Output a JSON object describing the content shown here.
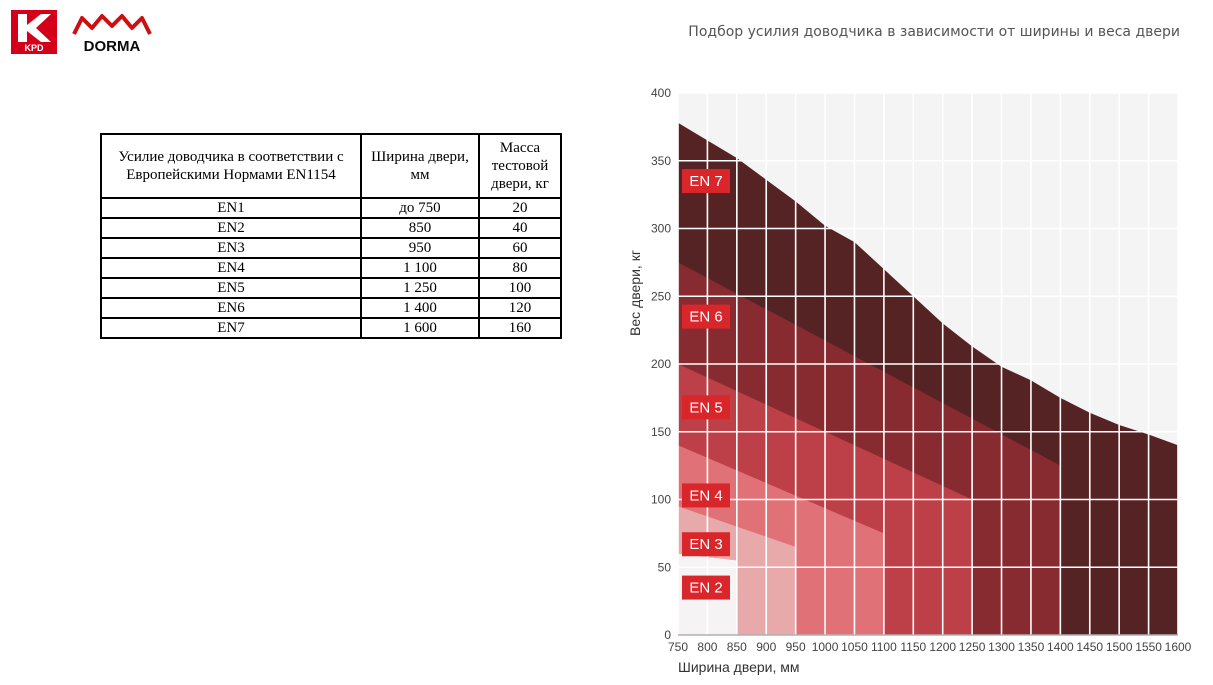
{
  "logos": {
    "kpd_text": "KPD",
    "dorma_text": "DORMA",
    "kpd_color": "#d4001a",
    "dorma_color": "#cc1010"
  },
  "table": {
    "headers": [
      "Усилие доводчика в соответствии с Европейскими Нормами EN1154",
      "Ширина двери, мм",
      "Масса тестовой двери, кг"
    ],
    "rows": [
      [
        "EN1",
        "до 750",
        "20"
      ],
      [
        "EN2",
        "850",
        "40"
      ],
      [
        "EN3",
        "950",
        "60"
      ],
      [
        "EN4",
        "1 100",
        "80"
      ],
      [
        "EN5",
        "1 250",
        "100"
      ],
      [
        "EN6",
        "1 400",
        "120"
      ],
      [
        "EN7",
        "1 600",
        "160"
      ]
    ]
  },
  "chart_data": {
    "type": "area",
    "title": "Подбор усилия доводчика в зависимости от ширины и веса двери",
    "xlabel": "Ширина двери, мм",
    "ylabel": "Вес двери, кг",
    "xlim": [
      750,
      1600
    ],
    "ylim": [
      0,
      400
    ],
    "xticks": [
      750,
      800,
      850,
      900,
      950,
      1000,
      1050,
      1100,
      1150,
      1200,
      1250,
      1300,
      1350,
      1400,
      1450,
      1500,
      1550,
      1600
    ],
    "yticks": [
      0,
      50,
      100,
      150,
      200,
      250,
      300,
      350,
      400
    ],
    "grid": true,
    "series": [
      {
        "name": "EN 7",
        "color": "#562324",
        "label_y": 335,
        "x_max": 1600,
        "boundary": [
          [
            750,
            378
          ],
          [
            850,
            352
          ],
          [
            950,
            320
          ],
          [
            1000,
            302
          ],
          [
            1050,
            290
          ],
          [
            1100,
            270
          ],
          [
            1150,
            250
          ],
          [
            1200,
            230
          ],
          [
            1250,
            213
          ],
          [
            1300,
            198
          ],
          [
            1350,
            188
          ],
          [
            1400,
            175
          ],
          [
            1450,
            164
          ],
          [
            1500,
            155
          ],
          [
            1550,
            148
          ],
          [
            1600,
            140
          ]
        ]
      },
      {
        "name": "EN 6",
        "color": "#882b31",
        "label_y": 235,
        "x_max": 1400,
        "boundary": [
          [
            750,
            275
          ],
          [
            1400,
            125
          ]
        ]
      },
      {
        "name": "EN 5",
        "color": "#bd4049",
        "label_y": 168,
        "x_max": 1250,
        "boundary": [
          [
            750,
            200
          ],
          [
            1250,
            100
          ]
        ]
      },
      {
        "name": "EN 4",
        "color": "#e07176",
        "label_y": 103,
        "x_max": 1100,
        "boundary": [
          [
            750,
            140
          ],
          [
            1100,
            75
          ]
        ]
      },
      {
        "name": "EN 3",
        "color": "#e8a9aa",
        "label_y": 67,
        "x_max": 950,
        "boundary": [
          [
            750,
            95
          ],
          [
            950,
            65
          ]
        ]
      },
      {
        "name": "EN 2",
        "color": "#f5f3f3",
        "label_y": 35,
        "x_max": 850,
        "boundary": [
          [
            750,
            60
          ],
          [
            850,
            55
          ]
        ]
      }
    ],
    "label_color": "#d8262b"
  }
}
